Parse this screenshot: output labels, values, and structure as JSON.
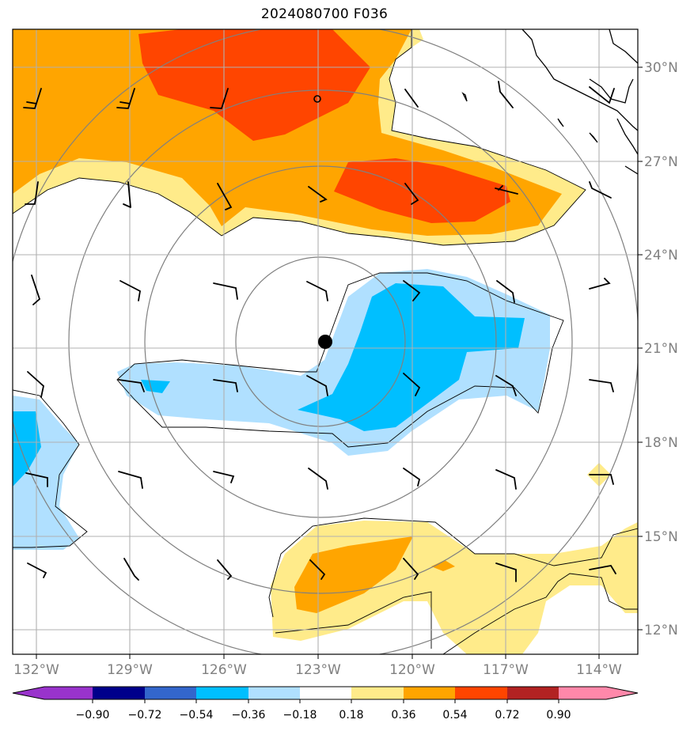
{
  "title": "2024080700 F036",
  "longitude_labels": [
    "132°W",
    "129°W",
    "126°W",
    "123°W",
    "120°W",
    "117°W",
    "114°W"
  ],
  "latitude_labels": [
    "30°N",
    "27°N",
    "24°N",
    "21°N",
    "18°N",
    "15°N",
    "12°N"
  ],
  "colorbar": {
    "tick_labels": [
      "−0.90",
      "−0.72",
      "−0.54",
      "−0.36",
      "−0.18",
      "0.18",
      "0.36",
      "0.54",
      "0.72",
      "0.90"
    ],
    "colors": [
      "#9933cc",
      "#00008b",
      "#3366cc",
      "#00bfff",
      "#b0e0ff",
      "#ffffff",
      "#ffeb8a",
      "#ffa500",
      "#ff4500",
      "#b22222",
      "#ff88aa"
    ]
  },
  "storm_center_marker": "filled-circle",
  "range_rings": 4
}
